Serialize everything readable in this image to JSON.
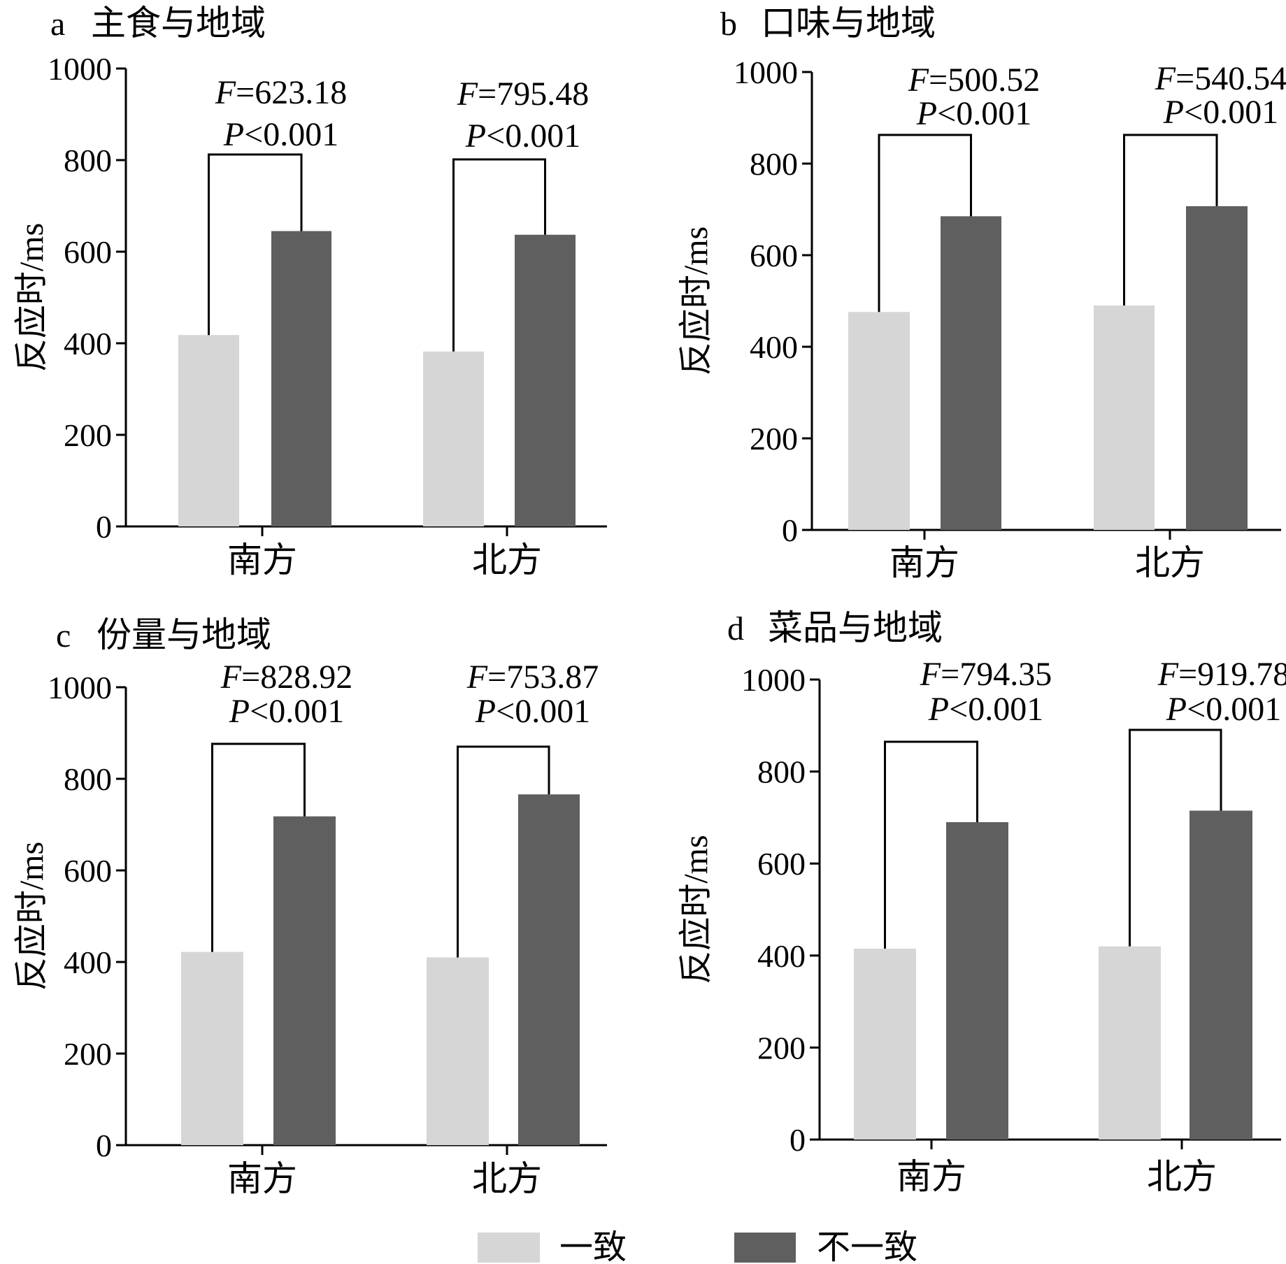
{
  "colors": {
    "consistent": "#d6d6d6",
    "inconsistent": "#5f5f5f"
  },
  "legend": [
    {
      "key": "consistent",
      "label": "一致"
    },
    {
      "key": "inconsistent",
      "label": "不一致"
    }
  ],
  "chart_data": [
    {
      "type": "bar",
      "letter": "a",
      "title": "主食与地域",
      "ylabel": "反应时/ms",
      "ylim": [
        0,
        1000
      ],
      "yticks": [
        0,
        200,
        400,
        600,
        800,
        1000
      ],
      "categories": [
        "南方",
        "北方"
      ],
      "series": [
        {
          "name": "一致",
          "values": [
            418,
            382
          ]
        },
        {
          "name": "不一致",
          "values": [
            645,
            637
          ]
        }
      ],
      "annotations": [
        {
          "f": "=623.18",
          "p": "<0.001"
        },
        {
          "f": "=795.48",
          "p": "<0.001"
        }
      ]
    },
    {
      "type": "bar",
      "letter": "b",
      "title": "口味与地域",
      "ylabel": "反应时/ms",
      "ylim": [
        0,
        1000
      ],
      "yticks": [
        0,
        200,
        400,
        600,
        800,
        1000
      ],
      "categories": [
        "南方",
        "北方"
      ],
      "series": [
        {
          "name": "一致",
          "values": [
            476,
            490
          ]
        },
        {
          "name": "不一致",
          "values": [
            685,
            707
          ]
        }
      ],
      "annotations": [
        {
          "f": "=500.52",
          "p": "<0.001"
        },
        {
          "f": "=540.54",
          "p": "<0.001"
        }
      ]
    },
    {
      "type": "bar",
      "letter": "c",
      "title": "份量与地域",
      "ylabel": "反应时/ms",
      "ylim": [
        0,
        1000
      ],
      "yticks": [
        0,
        200,
        400,
        600,
        800,
        1000
      ],
      "categories": [
        "南方",
        "北方"
      ],
      "series": [
        {
          "name": "一致",
          "values": [
            422,
            410
          ]
        },
        {
          "name": "不一致",
          "values": [
            718,
            766
          ]
        }
      ],
      "annotations": [
        {
          "f": "=828.92",
          "p": "<0.001"
        },
        {
          "f": "=753.87",
          "p": "<0.001"
        }
      ]
    },
    {
      "type": "bar",
      "letter": "d",
      "title": "菜品与地域",
      "ylabel": "反应时/ms",
      "ylim": [
        0,
        1000
      ],
      "yticks": [
        0,
        200,
        400,
        600,
        800,
        1000
      ],
      "categories": [
        "南方",
        "北方"
      ],
      "series": [
        {
          "name": "一致",
          "values": [
            415,
            420
          ]
        },
        {
          "name": "不一致",
          "values": [
            690,
            715
          ]
        }
      ],
      "annotations": [
        {
          "f": "=794.35",
          "p": "<0.001"
        },
        {
          "f": "=919.78",
          "p": "<0.001"
        }
      ]
    }
  ]
}
